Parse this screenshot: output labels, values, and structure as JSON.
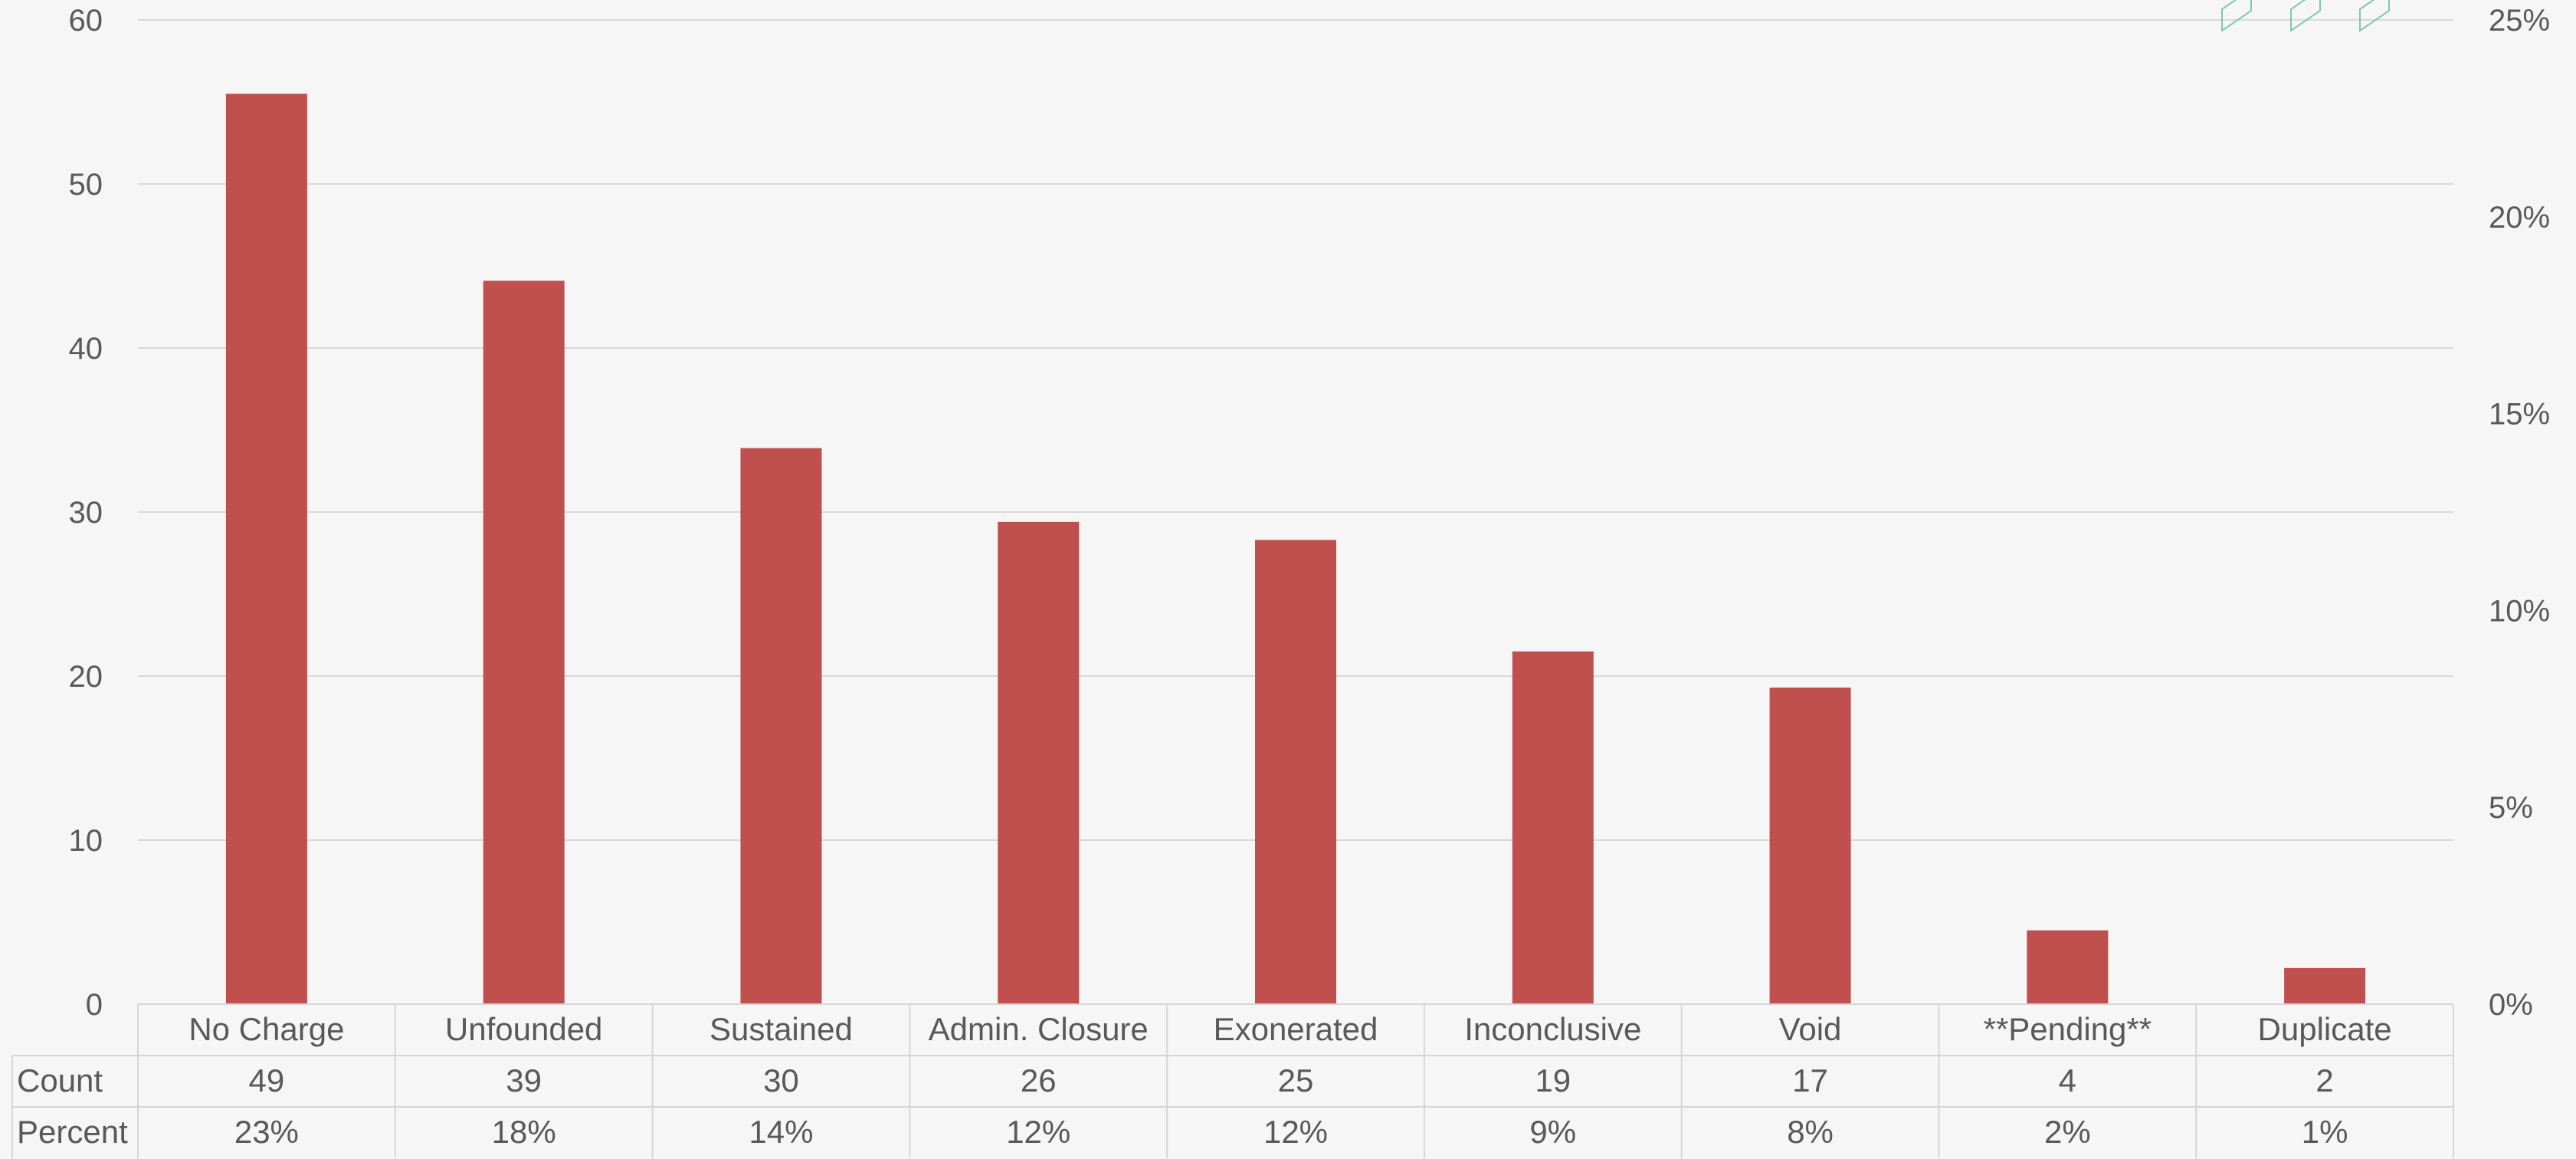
{
  "chart_data": {
    "type": "bar",
    "title": "",
    "xlabel": "",
    "ylabel": "",
    "categories": [
      "No Charge",
      "Unfounded",
      "Sustained",
      "Admin. Closure",
      "Exonerated",
      "Inconclusive",
      "Void",
      "**Pending**",
      "Duplicate"
    ],
    "values": [
      55.5,
      44.1,
      33.9,
      29.4,
      28.3,
      21.5,
      19.3,
      4.5,
      2.2
    ],
    "ylim": [
      0,
      60
    ],
    "yticks": [
      "0",
      "10",
      "20",
      "30",
      "40",
      "50",
      "60"
    ],
    "y2lim": [
      0,
      25
    ],
    "y2ticks": [
      "0%",
      "5%",
      "10%",
      "15%",
      "20%",
      "25%"
    ],
    "grid": true,
    "legend": "none",
    "bar_color": "#c0504d",
    "table": {
      "rows": [
        {
          "label": "Count",
          "values": [
            "49",
            "39",
            "30",
            "26",
            "25",
            "19",
            "17",
            "4",
            "2"
          ]
        },
        {
          "label": "Percent",
          "values": [
            "23%",
            "18%",
            "14%",
            "12%",
            "12%",
            "9%",
            "8%",
            "2%",
            "1%"
          ]
        }
      ]
    }
  }
}
